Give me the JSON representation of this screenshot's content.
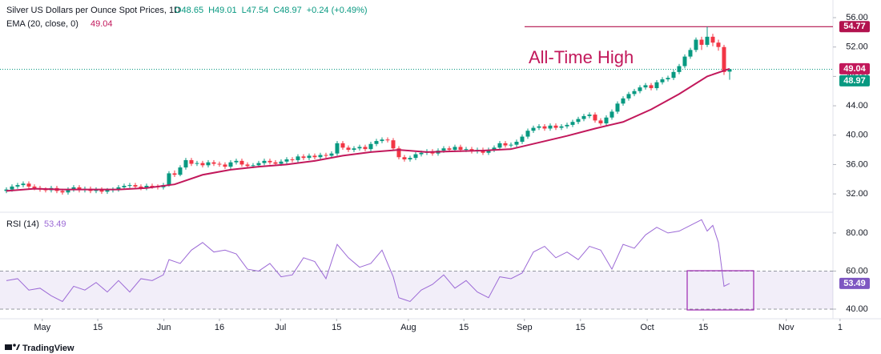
{
  "chart_data": {
    "type": "candlestick",
    "title": "Silver US Dollars per Ounce Spot Prices, 1D",
    "header_values": [
      "O48.65",
      "H49.01",
      "L47.54",
      "C48.97",
      "+0.24 (+0.49%)"
    ],
    "ema_label": "EMA (20, close, 0)",
    "ema_value": "49.04",
    "annotation": "All-Time High",
    "up_color": "#089981",
    "down_color": "#f23645",
    "xlim": [
      -1.14,
      147.43
    ],
    "xticks": [
      {
        "value": 6.4,
        "label": "May"
      },
      {
        "value": 16.3,
        "label": "15"
      },
      {
        "value": 28.1,
        "label": "Jun"
      },
      {
        "value": 38,
        "label": "16"
      },
      {
        "value": 48.9,
        "label": "Jul"
      },
      {
        "value": 58.9,
        "label": "15"
      },
      {
        "value": 71.7,
        "label": "Aug"
      },
      {
        "value": 81.6,
        "label": "15"
      },
      {
        "value": 92.4,
        "label": "Sep"
      },
      {
        "value": 102.4,
        "label": "15"
      },
      {
        "value": 114.3,
        "label": "Oct"
      },
      {
        "value": 124.3,
        "label": "15"
      },
      {
        "value": 139.1,
        "label": "Nov"
      },
      {
        "value": 148.7,
        "label": "1"
      }
    ],
    "ylim": [
      29.83,
      57.53
    ],
    "yticks": [
      {
        "value": 56,
        "label": "56.00"
      },
      {
        "value": 52,
        "label": "52.00"
      },
      {
        "value": 48,
        "label": "48.00"
      },
      {
        "value": 44,
        "label": "44.00"
      },
      {
        "value": 40,
        "label": "40.00"
      },
      {
        "value": 36,
        "label": "36.00"
      },
      {
        "value": 32,
        "label": "32.00"
      }
    ],
    "ohlc": [
      [
        32.4,
        32.9,
        32.1,
        32.6
      ],
      [
        32.6,
        33.3,
        32.3,
        33.0
      ],
      [
        33.0,
        33.5,
        32.7,
        33.2
      ],
      [
        33.2,
        33.7,
        32.9,
        33.4
      ],
      [
        33.4,
        33.7,
        32.7,
        33.0
      ],
      [
        33.0,
        33.3,
        32.5,
        32.8
      ],
      [
        32.8,
        33.1,
        32.3,
        32.6
      ],
      [
        32.6,
        32.9,
        32.2,
        32.5
      ],
      [
        32.5,
        33.1,
        32.2,
        32.8
      ],
      [
        32.8,
        33.1,
        32.1,
        32.4
      ],
      [
        32.4,
        32.7,
        31.9,
        32.2
      ],
      [
        32.2,
        32.9,
        31.9,
        32.6
      ],
      [
        32.6,
        33.2,
        32.3,
        32.9
      ],
      [
        32.9,
        33.2,
        32.2,
        32.5
      ],
      [
        32.5,
        33.0,
        32.2,
        32.7
      ],
      [
        32.7,
        33.0,
        32.1,
        32.4
      ],
      [
        32.4,
        32.9,
        32.1,
        32.6
      ],
      [
        32.6,
        32.9,
        32.0,
        32.3
      ],
      [
        32.3,
        32.8,
        32.0,
        32.5
      ],
      [
        32.5,
        32.9,
        32.2,
        32.6
      ],
      [
        32.6,
        33.2,
        32.3,
        32.9
      ],
      [
        32.9,
        33.4,
        32.6,
        33.1
      ],
      [
        33.1,
        33.5,
        32.8,
        33.2
      ],
      [
        33.2,
        33.5,
        32.7,
        33.0
      ],
      [
        33.0,
        33.3,
        32.5,
        32.8
      ],
      [
        32.8,
        33.4,
        32.5,
        33.1
      ],
      [
        33.1,
        33.4,
        32.7,
        33.0
      ],
      [
        33.0,
        33.3,
        32.6,
        32.9
      ],
      [
        32.9,
        33.5,
        32.6,
        33.2
      ],
      [
        33.2,
        35.1,
        33.0,
        34.8
      ],
      [
        34.8,
        35.2,
        34.3,
        34.6
      ],
      [
        34.6,
        35.9,
        34.4,
        35.6
      ],
      [
        35.6,
        36.9,
        35.3,
        36.6
      ],
      [
        36.6,
        36.9,
        35.8,
        36.1
      ],
      [
        36.1,
        36.5,
        35.8,
        36.2
      ],
      [
        36.2,
        36.5,
        35.6,
        35.9
      ],
      [
        35.9,
        36.6,
        35.6,
        36.3
      ],
      [
        36.3,
        36.6,
        35.8,
        36.1
      ],
      [
        36.1,
        36.4,
        35.7,
        36.0
      ],
      [
        36.0,
        36.3,
        35.4,
        35.7
      ],
      [
        35.7,
        36.6,
        35.4,
        36.3
      ],
      [
        36.3,
        36.8,
        36.0,
        36.5
      ],
      [
        36.5,
        36.8,
        35.7,
        36.0
      ],
      [
        36.0,
        36.3,
        35.5,
        35.8
      ],
      [
        35.8,
        36.2,
        35.5,
        35.9
      ],
      [
        35.9,
        36.5,
        35.6,
        36.2
      ],
      [
        36.2,
        36.8,
        35.9,
        36.5
      ],
      [
        36.5,
        36.8,
        36.0,
        36.3
      ],
      [
        36.3,
        36.6,
        35.8,
        36.1
      ],
      [
        36.1,
        36.7,
        35.8,
        36.4
      ],
      [
        36.4,
        37.0,
        36.1,
        36.7
      ],
      [
        36.7,
        37.0,
        36.3,
        36.6
      ],
      [
        36.6,
        37.4,
        36.3,
        37.1
      ],
      [
        37.1,
        37.4,
        36.6,
        36.9
      ],
      [
        36.9,
        37.5,
        36.6,
        37.2
      ],
      [
        37.2,
        37.5,
        36.7,
        37.0
      ],
      [
        37.0,
        37.6,
        36.7,
        37.3
      ],
      [
        37.3,
        37.6,
        36.9,
        37.2
      ],
      [
        37.2,
        37.8,
        36.9,
        37.5
      ],
      [
        37.5,
        39.2,
        37.2,
        38.9
      ],
      [
        38.9,
        39.2,
        38.0,
        38.3
      ],
      [
        38.3,
        38.6,
        37.7,
        38.0
      ],
      [
        38.0,
        38.5,
        37.7,
        38.2
      ],
      [
        38.2,
        38.7,
        37.9,
        38.4
      ],
      [
        38.4,
        38.7,
        37.8,
        38.1
      ],
      [
        38.1,
        39.1,
        37.8,
        38.8
      ],
      [
        38.8,
        39.5,
        38.5,
        39.2
      ],
      [
        39.2,
        39.7,
        38.9,
        39.4
      ],
      [
        39.4,
        39.7,
        39.0,
        39.3
      ],
      [
        39.3,
        39.6,
        37.9,
        38.2
      ],
      [
        38.2,
        38.5,
        36.7,
        37.0
      ],
      [
        37.0,
        37.3,
        36.4,
        36.7
      ],
      [
        36.7,
        37.2,
        36.4,
        36.9
      ],
      [
        36.9,
        37.7,
        36.6,
        37.4
      ],
      [
        37.4,
        37.9,
        37.1,
        37.6
      ],
      [
        37.6,
        38.1,
        37.3,
        37.8
      ],
      [
        37.8,
        38.1,
        37.2,
        37.5
      ],
      [
        37.5,
        38.2,
        37.2,
        37.9
      ],
      [
        37.9,
        38.5,
        37.6,
        38.2
      ],
      [
        38.2,
        38.5,
        37.7,
        38.0
      ],
      [
        38.0,
        38.7,
        37.7,
        38.4
      ],
      [
        38.4,
        38.7,
        37.7,
        38.0
      ],
      [
        38.0,
        38.4,
        37.7,
        38.1
      ],
      [
        38.1,
        38.4,
        37.5,
        37.8
      ],
      [
        37.8,
        38.3,
        37.5,
        38.0
      ],
      [
        38.0,
        38.3,
        37.3,
        37.6
      ],
      [
        37.6,
        38.3,
        37.3,
        38.0
      ],
      [
        38.0,
        38.6,
        37.7,
        38.3
      ],
      [
        38.3,
        39.2,
        38.0,
        38.9
      ],
      [
        38.9,
        39.2,
        38.3,
        38.6
      ],
      [
        38.6,
        39.0,
        38.3,
        38.7
      ],
      [
        38.7,
        39.4,
        38.4,
        39.1
      ],
      [
        39.1,
        40.1,
        38.8,
        39.8
      ],
      [
        39.8,
        40.9,
        39.5,
        40.6
      ],
      [
        40.6,
        41.3,
        40.3,
        41.0
      ],
      [
        41.0,
        41.5,
        40.7,
        41.2
      ],
      [
        41.2,
        41.5,
        40.6,
        40.9
      ],
      [
        40.9,
        41.6,
        40.6,
        41.3
      ],
      [
        41.3,
        41.6,
        40.7,
        41.0
      ],
      [
        41.0,
        41.5,
        40.7,
        41.2
      ],
      [
        41.2,
        41.7,
        40.9,
        41.4
      ],
      [
        41.4,
        42.1,
        41.1,
        41.8
      ],
      [
        41.8,
        42.5,
        41.5,
        42.2
      ],
      [
        42.2,
        42.9,
        41.9,
        42.6
      ],
      [
        42.6,
        43.1,
        42.3,
        42.8
      ],
      [
        42.8,
        43.1,
        41.7,
        42.0
      ],
      [
        42.0,
        42.3,
        41.3,
        41.6
      ],
      [
        41.6,
        42.7,
        41.3,
        42.4
      ],
      [
        42.4,
        43.5,
        42.1,
        43.2
      ],
      [
        43.2,
        44.6,
        42.9,
        44.3
      ],
      [
        44.3,
        45.3,
        44.0,
        45.0
      ],
      [
        45.0,
        45.9,
        44.7,
        45.6
      ],
      [
        45.6,
        46.3,
        45.3,
        46.0
      ],
      [
        46.0,
        46.8,
        45.7,
        46.5
      ],
      [
        46.5,
        47.1,
        46.2,
        46.8
      ],
      [
        46.8,
        47.1,
        46.1,
        46.4
      ],
      [
        46.4,
        47.5,
        46.1,
        47.2
      ],
      [
        47.2,
        47.9,
        46.9,
        47.6
      ],
      [
        47.6,
        48.1,
        47.3,
        47.8
      ],
      [
        47.8,
        48.9,
        47.5,
        48.6
      ],
      [
        48.6,
        49.7,
        48.3,
        49.4
      ],
      [
        49.4,
        51.0,
        49.1,
        50.7
      ],
      [
        50.7,
        51.9,
        50.4,
        51.6
      ],
      [
        51.6,
        53.3,
        51.3,
        53.0
      ],
      [
        53.0,
        53.4,
        51.6,
        52.3
      ],
      [
        52.3,
        54.77,
        52.0,
        53.4
      ],
      [
        53.4,
        53.8,
        52.1,
        52.6
      ],
      [
        52.6,
        53.0,
        51.5,
        52.0
      ],
      [
        52.0,
        52.3,
        48.2,
        48.6
      ],
      [
        48.65,
        49.01,
        47.54,
        48.97
      ]
    ],
    "ema": {
      "name": "EMA",
      "color": "#c2185b",
      "x": [
        0,
        5,
        10,
        15,
        20,
        25,
        30,
        35,
        40,
        45,
        50,
        55,
        60,
        65,
        70,
        75,
        80,
        85,
        90,
        95,
        100,
        105,
        110,
        115,
        120,
        125,
        129
      ],
      "values": [
        32.4,
        32.7,
        32.6,
        32.6,
        32.6,
        32.8,
        33.3,
        34.6,
        35.3,
        35.7,
        36.0,
        36.5,
        37.2,
        37.7,
        38.0,
        37.7,
        37.8,
        37.9,
        38.1,
        39.0,
        39.9,
        40.9,
        41.8,
        43.5,
        45.6,
        48.0,
        49.04
      ]
    },
    "hline": {
      "value": 54.77,
      "color": "#b2124e"
    },
    "price_labels": [
      {
        "value": 54.77,
        "color": "#b2124e"
      },
      {
        "value": 49.04,
        "color": "#c2185b"
      },
      {
        "value": 48.97,
        "color": "#089981"
      }
    ],
    "rsi": {
      "label": "RSI (14)",
      "value_text": "53.49",
      "color": "#9c6ad6",
      "ylim": [
        34.1,
        88.8
      ],
      "yticks": [
        {
          "value": 80,
          "label": "80.00"
        },
        {
          "value": 60,
          "label": "60.00"
        },
        {
          "value": 40,
          "label": "40.00"
        }
      ],
      "band": [
        40,
        60
      ],
      "x": [
        0,
        2,
        4,
        6,
        8,
        10,
        12,
        14,
        16,
        18,
        20,
        22,
        24,
        26,
        28,
        29,
        31,
        33,
        35,
        37,
        39,
        41,
        43,
        45,
        47,
        49,
        51,
        53,
        55,
        57,
        59,
        61,
        63,
        65,
        67,
        69,
        70,
        72,
        74,
        76,
        78,
        80,
        82,
        84,
        86,
        88,
        90,
        92,
        94,
        96,
        98,
        100,
        102,
        104,
        106,
        108,
        110,
        112,
        114,
        116,
        118,
        120,
        122,
        124,
        125,
        126,
        127,
        128,
        129
      ],
      "values": [
        55,
        56,
        50,
        51,
        47,
        44,
        52,
        50,
        54,
        49,
        55,
        49,
        56,
        55,
        58,
        66,
        64,
        71,
        75,
        70,
        71,
        69,
        61,
        60,
        64,
        57,
        58,
        67,
        65,
        56,
        74,
        67,
        62,
        64,
        71,
        57,
        46,
        44,
        50,
        53,
        58,
        51,
        55,
        49,
        46,
        57,
        56,
        59,
        70,
        73,
        67,
        70,
        66,
        73,
        71,
        61,
        74,
        72,
        79,
        83,
        80,
        81,
        84,
        87,
        81,
        84,
        75,
        52,
        53.49
      ],
      "last": 53.49
    },
    "footer": "TradingView"
  }
}
